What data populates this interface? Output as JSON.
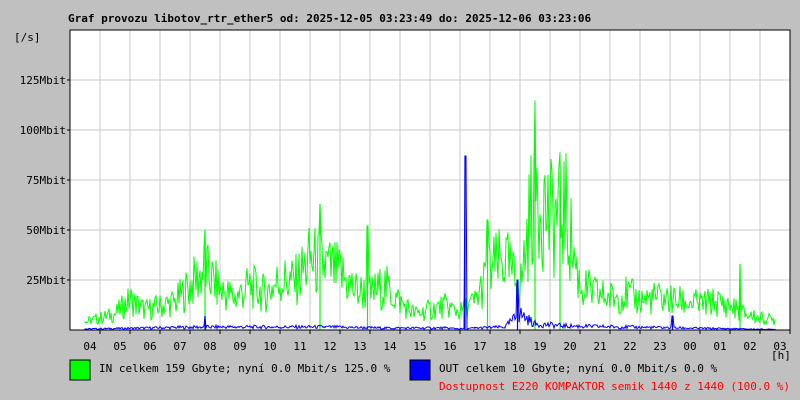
{
  "chart_data": {
    "type": "area",
    "title": "Graf provozu libotov_rtr_ether5 od: 2025-12-05 03:23:49 do: 2025-12-06 03:23:06",
    "ylabel": "[/s]",
    "xlabel": "[h]",
    "ylim": [
      0,
      150
    ],
    "y_unit": "Mbit",
    "y_ticks": [
      {
        "value": 25,
        "label": "25Mbit"
      },
      {
        "value": 50,
        "label": "50Mbit"
      },
      {
        "value": 75,
        "label": "75Mbit"
      },
      {
        "value": 100,
        "label": "100Mbit"
      },
      {
        "value": 125,
        "label": "125Mbit"
      }
    ],
    "x_ticks": [
      "04",
      "05",
      "06",
      "07",
      "08",
      "09",
      "10",
      "11",
      "12",
      "13",
      "14",
      "15",
      "16",
      "17",
      "18",
      "19",
      "20",
      "21",
      "22",
      "23",
      "00",
      "01",
      "02",
      "03"
    ],
    "grid": true,
    "series": [
      {
        "name": "IN",
        "color": "#00ff00",
        "x": [
          "04:00",
          "04:30",
          "05:00",
          "05:30",
          "06:00",
          "06:30",
          "07:00",
          "07:30",
          "08:00",
          "08:30",
          "09:00",
          "09:30",
          "10:00",
          "10:30",
          "11:00",
          "11:30",
          "12:00",
          "12:30",
          "13:00",
          "13:30",
          "14:00",
          "14:30",
          "15:00",
          "15:30",
          "16:00",
          "16:30",
          "17:00",
          "17:30",
          "18:00",
          "18:30",
          "19:00",
          "19:30",
          "20:00",
          "20:30",
          "21:00",
          "21:30",
          "22:00",
          "22:30",
          "23:00",
          "23:30",
          "00:00",
          "00:30",
          "01:00",
          "01:30",
          "02:00",
          "02:30",
          "03:00"
        ],
        "values": [
          4,
          6,
          8,
          15,
          10,
          12,
          14,
          22,
          30,
          20,
          16,
          22,
          18,
          25,
          24,
          35,
          32,
          28,
          20,
          18,
          22,
          14,
          8,
          10,
          12,
          9,
          14,
          30,
          35,
          20,
          75,
          55,
          60,
          22,
          18,
          16,
          18,
          15,
          16,
          15,
          14,
          13,
          14,
          12,
          8,
          6,
          5
        ],
        "peaks": [
          {
            "x": "08:00",
            "value": 50
          },
          {
            "x": "11:50",
            "value": 63
          },
          {
            "x": "13:25",
            "value": 52
          },
          {
            "x": "17:25",
            "value": 55
          },
          {
            "x": "19:00",
            "value": 103
          },
          {
            "x": "19:50",
            "value": 70
          },
          {
            "x": "01:50",
            "value": 33
          }
        ]
      },
      {
        "name": "OUT",
        "color": "#0000ff",
        "x": [
          "04:00",
          "06:00",
          "08:00",
          "10:00",
          "12:00",
          "14:00",
          "16:00",
          "16:40",
          "17:00",
          "18:00",
          "18:30",
          "19:00",
          "20:00",
          "22:00",
          "00:00",
          "02:00",
          "03:00"
        ],
        "values": [
          0.5,
          1,
          1.5,
          1.5,
          1.5,
          1,
          1,
          0.5,
          1,
          1.5,
          8,
          3,
          2,
          1.5,
          1,
          0.5,
          0.3
        ],
        "peaks": [
          {
            "x": "16:40",
            "value": 87
          },
          {
            "x": "18:25",
            "value": 25
          },
          {
            "x": "08:00",
            "value": 7
          },
          {
            "x": "23:35",
            "value": 7
          }
        ]
      }
    ]
  },
  "legend": {
    "in_text": "IN celkem 159 Gbyte; nyní   0.0 Mbit/s 125.0 %",
    "out_text": "OUT celkem 10 Gbyte; nyní   0.0 Mbit/s 0.0 %",
    "availability_text": "Dostupnost E220 KOMPAKTOR semik 1440 z 1440 (100.0 %)",
    "in_color": "#00ff00",
    "out_color": "#0000ff",
    "availability_color": "#ff0000"
  }
}
